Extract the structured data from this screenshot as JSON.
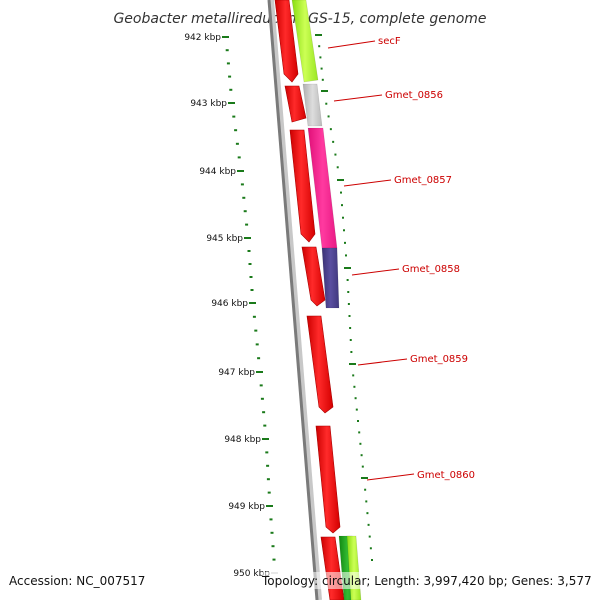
{
  "title": "Geobacter metallireducens GS-15, complete genome",
  "ruler": {
    "tick_labels": [
      "942 kbp",
      "943 kbp",
      "944 kbp",
      "945 kbp",
      "946 kbp",
      "947 kbp",
      "948 kbp",
      "949 kbp",
      "950 kbp"
    ]
  },
  "genes": [
    {
      "name": "secF"
    },
    {
      "name": "Gmet_0856"
    },
    {
      "name": "Gmet_0857"
    },
    {
      "name": "Gmet_0858"
    },
    {
      "name": "Gmet_0859"
    },
    {
      "name": "Gmet_0860"
    }
  ],
  "footer": {
    "accession": "Accession: NC_007517",
    "stats": "Topology: circular; Length: 3,997,420 bp; Genes: 3,577"
  },
  "colors": {
    "cds_red": "#ff0000",
    "secF_feature": "#aaff22",
    "gmet_0856_feature": "#c8c8c8",
    "gmet_0857_feature": "#ff1a8c",
    "gmet_0858_feature": "#4a3f8a",
    "backbone": "#888888",
    "ruler_ticks": "#1a7a1a",
    "label_red": "#cc0000"
  }
}
